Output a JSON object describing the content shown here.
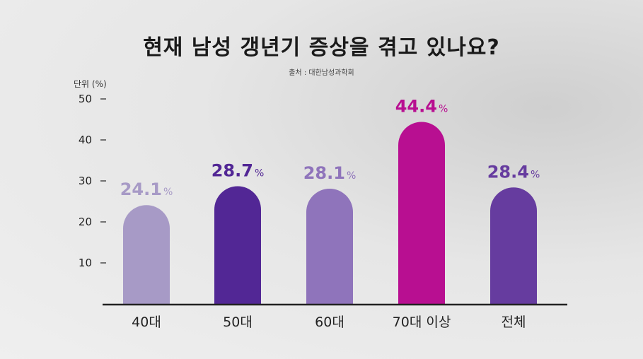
{
  "header": {
    "title": "현재 남성 갱년기 증상을 겪고 있나요?",
    "source": "출처 : 대한남성과학회"
  },
  "chart_data": {
    "type": "bar",
    "title": "현재 남성 갱년기 증상을 겪고 있나요?",
    "unit_label": "단위 (%)",
    "categories": [
      "40대",
      "50대",
      "60대",
      "70대 이상",
      "전체"
    ],
    "values": [
      24.1,
      28.7,
      28.1,
      44.4,
      28.4
    ],
    "value_labels": [
      "24.1",
      "28.7",
      "28.1",
      "44.4",
      "28.4"
    ],
    "value_suffix": "%",
    "bar_colors": [
      "#a79ac6",
      "#522795",
      "#8f74bb",
      "#b80f91",
      "#663c9f"
    ],
    "label_colors": [
      "#a79ac6",
      "#522795",
      "#8f74bb",
      "#b80f91",
      "#663c9f"
    ],
    "yticks": [
      10,
      20,
      30,
      40,
      50
    ],
    "ylim": [
      0,
      50
    ],
    "grid": false,
    "legend": "none"
  }
}
